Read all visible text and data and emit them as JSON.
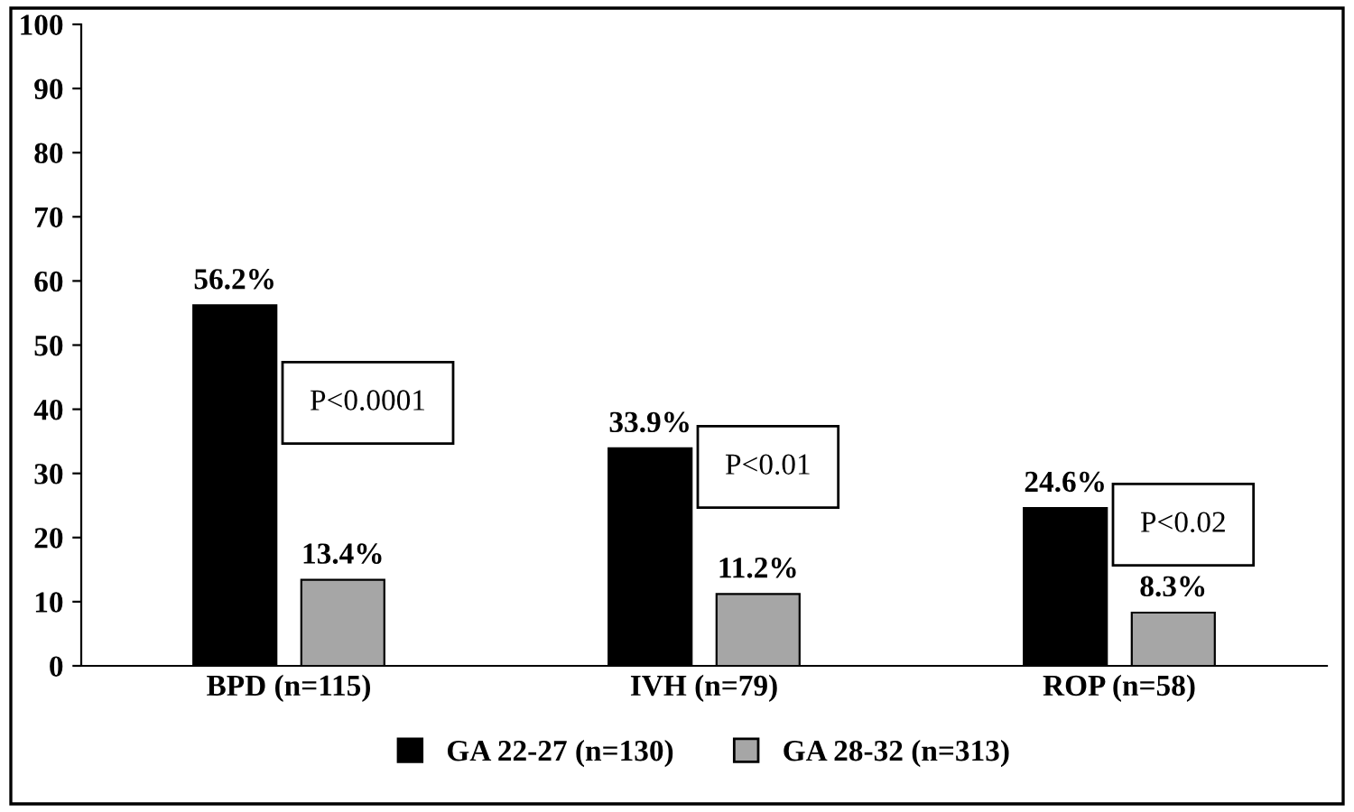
{
  "chart_data": {
    "type": "bar",
    "categories": [
      "BPD (n=115)",
      "IVH (n=79)",
      "ROP (n=58)"
    ],
    "series": [
      {
        "name": "GA 22-27 (n=130)",
        "color": "#000000",
        "values": [
          56.2,
          33.9,
          24.6
        ],
        "value_labels": [
          "56.2%",
          "33.9%",
          "24.6%"
        ]
      },
      {
        "name": "GA 28-32 (n=313)",
        "color": "#a6a6a6",
        "values": [
          13.4,
          11.2,
          8.3
        ],
        "value_labels": [
          "13.4%",
          "11.2%",
          "8.3%"
        ]
      }
    ],
    "ylim": [
      0,
      100
    ],
    "yticks": [
      0,
      10,
      20,
      30,
      40,
      50,
      60,
      70,
      80,
      90,
      100
    ],
    "grid": false,
    "legend": "bottom",
    "annotations": [
      "P<0.0001",
      "P<0.01",
      "P<0.02"
    ]
  }
}
